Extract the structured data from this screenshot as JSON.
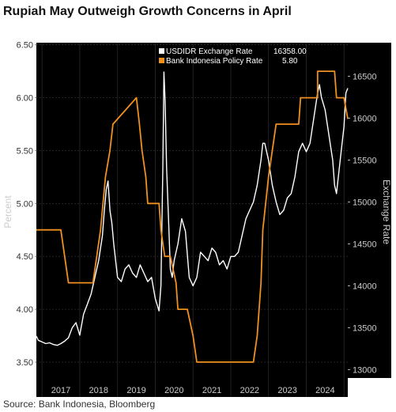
{
  "title": "Rupiah May Outweigh Growth Concerns in April",
  "source": "Source: Bank Indonesia, Bloomberg",
  "chart_data": {
    "type": "line",
    "background": "#000000",
    "x_tick_labels": [
      "2017",
      "2018",
      "2019",
      "2020",
      "2021",
      "2022",
      "2023",
      "2024"
    ],
    "x_range": [
      2016.85,
      2025.1
    ],
    "left_axis": {
      "label": "Percent",
      "ylim": [
        3.35,
        6.52
      ],
      "ticks": [
        3.5,
        4.0,
        4.5,
        5.0,
        5.5,
        6.0,
        6.5
      ],
      "tick_labels": [
        "3.50",
        "4.00",
        "4.50",
        "5.00",
        "5.50",
        "6.00",
        "6.50"
      ]
    },
    "right_axis": {
      "label": "Exchange Rate",
      "ylim": [
        12900,
        16900
      ],
      "ticks": [
        13000,
        13500,
        14000,
        14500,
        15000,
        15500,
        16000,
        16500
      ],
      "tick_labels": [
        "13000",
        "13500",
        "14000",
        "14500",
        "15000",
        "15500",
        "16000",
        "16500"
      ]
    },
    "legend": {
      "placement": "top-center"
    },
    "series": [
      {
        "name": "USDIDR Exchange Rate",
        "last_value": "16358.00",
        "color": "#ffffff",
        "axis": "right",
        "x": [
          2016.85,
          2016.9,
          2017.0,
          2017.1,
          2017.2,
          2017.3,
          2017.4,
          2017.5,
          2017.6,
          2017.7,
          2017.8,
          2017.9,
          2018.0,
          2018.1,
          2018.2,
          2018.3,
          2018.4,
          2018.5,
          2018.6,
          2018.65,
          2018.7,
          2018.75,
          2018.8,
          2018.85,
          2018.9,
          2019.0,
          2019.1,
          2019.2,
          2019.3,
          2019.4,
          2019.5,
          2019.6,
          2019.7,
          2019.8,
          2019.9,
          2020.0,
          2020.1,
          2020.15,
          2020.2,
          2020.23,
          2020.26,
          2020.3,
          2020.35,
          2020.4,
          2020.45,
          2020.5,
          2020.6,
          2020.7,
          2020.8,
          2020.9,
          2021.0,
          2021.1,
          2021.2,
          2021.3,
          2021.4,
          2021.5,
          2021.6,
          2021.7,
          2021.8,
          2021.9,
          2022.0,
          2022.1,
          2022.2,
          2022.3,
          2022.4,
          2022.5,
          2022.6,
          2022.7,
          2022.8,
          2022.85,
          2022.9,
          2023.0,
          2023.1,
          2023.2,
          2023.3,
          2023.4,
          2023.5,
          2023.6,
          2023.7,
          2023.8,
          2023.9,
          2024.0,
          2024.1,
          2024.2,
          2024.3,
          2024.35,
          2024.4,
          2024.5,
          2024.6,
          2024.7,
          2024.75,
          2024.8,
          2024.9,
          2025.0,
          2025.05,
          2025.1
        ],
        "values": [
          13400,
          13350,
          13330,
          13310,
          13320,
          13300,
          13290,
          13310,
          13340,
          13380,
          13500,
          13560,
          13410,
          13660,
          13780,
          13900,
          14100,
          14300,
          14600,
          14900,
          15150,
          15250,
          14900,
          14750,
          14500,
          14100,
          14050,
          14200,
          14250,
          14150,
          14100,
          14250,
          14150,
          14050,
          14100,
          13850,
          13700,
          14000,
          15400,
          16550,
          16200,
          15400,
          14800,
          14200,
          14100,
          14300,
          14500,
          14800,
          14650,
          14100,
          14000,
          14100,
          14400,
          14350,
          14300,
          14450,
          14400,
          14250,
          14300,
          14200,
          14350,
          14350,
          14400,
          14600,
          14800,
          14900,
          15000,
          15200,
          15500,
          15700,
          15700,
          15500,
          15200,
          15000,
          14850,
          14900,
          15050,
          15100,
          15300,
          15600,
          15700,
          15600,
          15700,
          16000,
          16300,
          16400,
          16250,
          16100,
          15800,
          15500,
          15200,
          15100,
          15500,
          15900,
          16300,
          16358
        ]
      },
      {
        "name": "Bank Indonesia Policy Rate",
        "last_value": "5.80",
        "color": "#f0901e",
        "axis": "left",
        "x": [
          2016.85,
          2017.5,
          2017.6,
          2017.7,
          2017.8,
          2018.35,
          2018.45,
          2018.55,
          2018.68,
          2018.8,
          2018.88,
          2019.5,
          2019.58,
          2019.65,
          2019.75,
          2019.8,
          2020.1,
          2020.15,
          2020.25,
          2020.4,
          2020.55,
          2020.6,
          2020.85,
          2021.0,
          2021.1,
          2022.6,
          2022.7,
          2022.8,
          2022.85,
          2023.0,
          2023.1,
          2023.2,
          2023.8,
          2023.85,
          2024.3,
          2024.3,
          2024.75,
          2024.8,
          2025.0,
          2025.1
        ],
        "values": [
          4.75,
          4.75,
          4.5,
          4.25,
          4.25,
          4.25,
          4.5,
          4.75,
          5.25,
          5.5,
          5.75,
          6.0,
          5.75,
          5.5,
          5.25,
          5.0,
          5.0,
          4.75,
          4.5,
          4.5,
          4.25,
          4.0,
          4.0,
          3.75,
          3.5,
          3.5,
          3.75,
          4.25,
          4.75,
          5.25,
          5.5,
          5.75,
          5.75,
          6.0,
          6.0,
          6.25,
          6.25,
          6.0,
          6.0,
          5.8
        ]
      }
    ]
  }
}
